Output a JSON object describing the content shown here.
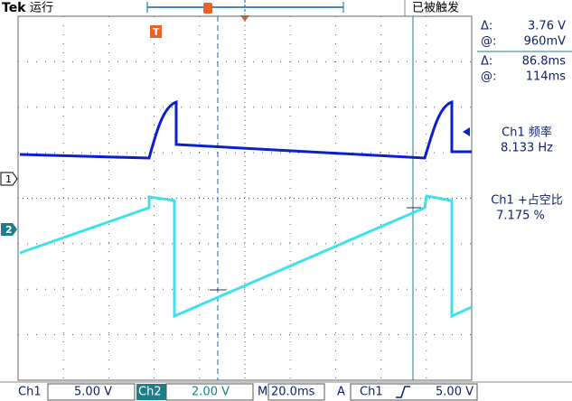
{
  "header": {
    "brand": "Tek",
    "state": "运行",
    "trigger_status": "已被触发"
  },
  "markers": {
    "ch1": "1",
    "ch2": "2",
    "trigger": "T"
  },
  "cursors": {
    "amplitude": {
      "delta_label": "Δ:",
      "delta": "3.76 V",
      "at_label": "@:",
      "at": "960mV"
    },
    "time": {
      "delta_label": "Δ:",
      "delta": "86.8ms",
      "at_label": "@:",
      "at": "114ms"
    }
  },
  "measurements": [
    {
      "label": "Ch1 频率",
      "value": "8.133 Hz"
    },
    {
      "label": "Ch1 +占空比",
      "value": "7.175 %"
    }
  ],
  "footer": {
    "ch1_label": "Ch1",
    "ch1_scale": "5.00 V",
    "ch2_label": "Ch2",
    "ch2_scale": "2.00 V",
    "time_label": "M",
    "time_scale": "20.0ms",
    "trigger_label": "A",
    "trigger_source": "Ch1",
    "trigger_level": "5.00 V"
  }
}
